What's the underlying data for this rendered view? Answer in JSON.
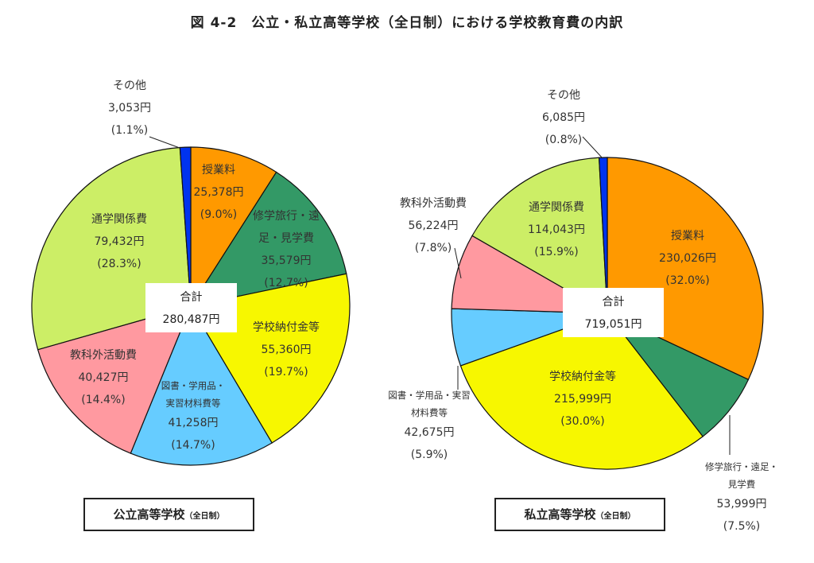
{
  "title": "図 4-2　公立・私立高等学校（全日制）における学校教育費の内訳",
  "colors": {
    "授業料": "#FF9900",
    "修学旅行・遠足・見学費": "#339966",
    "学校納付金等": "#F7F700",
    "図書・学用品・実習材料費等": "#66CCFF",
    "教科外活動費": "#FF99A0",
    "通学関係費": "#CCEE66",
    "その他": "#0033EE"
  },
  "chart_data": [
    {
      "type": "pie",
      "caption_main": "公立高等学校",
      "caption_sub": "（全日制）",
      "total_label": "合計",
      "total_value": "280,487円",
      "slices": [
        {
          "name": "授業料",
          "lines": [
            "授業料"
          ],
          "value": 25378,
          "value_text": "25,378円",
          "pct_text": "(9.0%)"
        },
        {
          "name": "修学旅行・遠足・見学費",
          "lines": [
            "修学旅行・遠",
            "足・見学費"
          ],
          "value": 35579,
          "value_text": "35,579円",
          "pct_text": "(12.7%)"
        },
        {
          "name": "学校納付金等",
          "lines": [
            "学校納付金等"
          ],
          "value": 55360,
          "value_text": "55,360円",
          "pct_text": "(19.7%)"
        },
        {
          "name": "図書・学用品・実習材料費等",
          "lines": [
            "図書・学用品・",
            "実習材料費等"
          ],
          "value": 41258,
          "value_text": "41,258円",
          "pct_text": "(14.7%)"
        },
        {
          "name": "教科外活動費",
          "lines": [
            "教科外活動費"
          ],
          "value": 40427,
          "value_text": "40,427円",
          "pct_text": "(14.4%)"
        },
        {
          "name": "通学関係費",
          "lines": [
            "通学関係費"
          ],
          "value": 79432,
          "value_text": "79,432円",
          "pct_text": "(28.3%)"
        },
        {
          "name": "その他",
          "lines": [
            "その他"
          ],
          "value": 3053,
          "value_text": "3,053円",
          "pct_text": "(1.1%)"
        }
      ]
    },
    {
      "type": "pie",
      "caption_main": "私立高等学校",
      "caption_sub": "（全日制）",
      "total_label": "合計",
      "total_value": "719,051円",
      "slices": [
        {
          "name": "授業料",
          "lines": [
            "授業料"
          ],
          "value": 230026,
          "value_text": "230,026円",
          "pct_text": "(32.0%)"
        },
        {
          "name": "修学旅行・遠足・見学費",
          "lines": [
            "修学旅行・遠足・",
            "見学費"
          ],
          "value": 53999,
          "value_text": "53,999円",
          "pct_text": "(7.5%)"
        },
        {
          "name": "学校納付金等",
          "lines": [
            "学校納付金等"
          ],
          "value": 215999,
          "value_text": "215,999円",
          "pct_text": "(30.0%)"
        },
        {
          "name": "図書・学用品・実習材料費等",
          "lines": [
            "図書・学用品・実習",
            "材料費等"
          ],
          "value": 42675,
          "value_text": "42,675円",
          "pct_text": "(5.9%)"
        },
        {
          "name": "教科外活動費",
          "lines": [
            "教科外活動費"
          ],
          "value": 56224,
          "value_text": "56,224円",
          "pct_text": "(7.8%)"
        },
        {
          "name": "通学関係費",
          "lines": [
            "通学関係費"
          ],
          "value": 114043,
          "value_text": "114,043円",
          "pct_text": "(15.9%)"
        },
        {
          "name": "その他",
          "lines": [
            "その他"
          ],
          "value": 6085,
          "value_text": "6,085円",
          "pct_text": "(0.8%)"
        }
      ]
    }
  ]
}
